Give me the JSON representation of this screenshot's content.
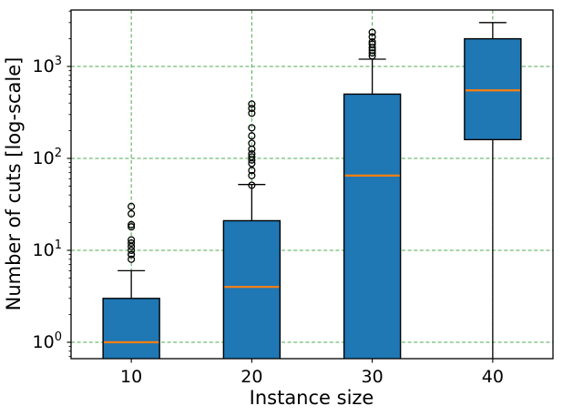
{
  "chart_data": {
    "type": "boxplot",
    "title": "",
    "xlabel": "Instance size",
    "ylabel": "Number of cuts [log-scale]",
    "yscale": "log",
    "ylim": [
      0.66,
      4100
    ],
    "categories": [
      "10",
      "20",
      "30",
      "40"
    ],
    "yticks": [
      {
        "value": 1,
        "base": "10",
        "exponent": "0"
      },
      {
        "value": 10,
        "base": "10",
        "exponent": "1"
      },
      {
        "value": 100,
        "base": "10",
        "exponent": "2"
      },
      {
        "value": 1000,
        "base": "10",
        "exponent": "3"
      }
    ],
    "grid": {
      "horizontal": true,
      "vertical": true,
      "style": "dashed",
      "color": "#4cab50"
    },
    "series": [
      {
        "category": "10",
        "median": 1,
        "q3": 3,
        "whisker_high": 6,
        "q1": null,
        "whisker_low": null,
        "clipped_bottom": true,
        "outliers": [
          8,
          9,
          9,
          10,
          11,
          12,
          13,
          18,
          19,
          25,
          30
        ]
      },
      {
        "category": "20",
        "median": 4,
        "q3": 21,
        "whisker_high": 52,
        "q1": null,
        "whisker_low": null,
        "clipped_bottom": true,
        "outliers": [
          51,
          65,
          74,
          88,
          96,
          104,
          112,
          126,
          146,
          176,
          215,
          310,
          350,
          390
        ]
      },
      {
        "category": "30",
        "median": 65,
        "q3": 500,
        "whisker_high": 1200,
        "q1": null,
        "whisker_low": null,
        "clipped_bottom": true,
        "outliers": [
          1300,
          1400,
          1500,
          1600,
          1750,
          1850,
          2100,
          2350
        ]
      },
      {
        "category": "40",
        "median": 550,
        "q3": 2000,
        "whisker_high": 3000,
        "q1": 160,
        "whisker_low": null,
        "clipped_bottom": true,
        "outliers": []
      }
    ],
    "colors": {
      "box_fill": "#1f77b4",
      "box_edge": "#000000",
      "median": "#ff7f0e",
      "whisker": "#000000",
      "outlier_edge": "#000000",
      "grid": "#4cab50",
      "spine": "#000000",
      "background": "#ffffff"
    }
  }
}
